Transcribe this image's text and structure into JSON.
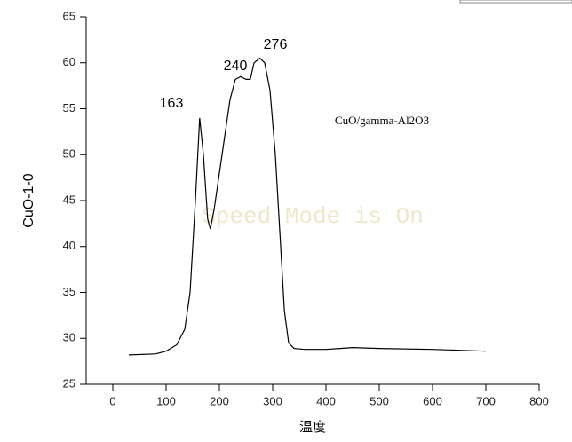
{
  "chart_data": {
    "type": "line",
    "y_label": "CuO-1-0",
    "x_label": "温度",
    "annotations": [
      "163",
      "240",
      "276",
      "CuO/gamma-Al2O3"
    ],
    "watermark": "Speed Mode is On",
    "x": [
      30,
      80,
      100,
      120,
      135,
      145,
      155,
      163,
      170,
      178,
      183,
      190,
      200,
      210,
      220,
      230,
      240,
      250,
      258,
      265,
      276,
      285,
      295,
      305,
      315,
      322,
      330,
      340,
      360,
      400,
      450,
      500,
      600,
      650,
      700
    ],
    "values": [
      28.2,
      28.3,
      28.6,
      29.3,
      31,
      35,
      45,
      54,
      50,
      43,
      41.9,
      44,
      48,
      52,
      56,
      58.2,
      58.5,
      58.2,
      58.2,
      60,
      60.5,
      60,
      57,
      50,
      40,
      33,
      29.5,
      28.9,
      28.8,
      28.8,
      29,
      28.9,
      28.8,
      28.7,
      28.6
    ],
    "color": "#000000",
    "xlim": [
      -50,
      800
    ],
    "ylim": [
      25,
      65
    ],
    "xticks": [
      0,
      100,
      200,
      300,
      400,
      500,
      600,
      700,
      800
    ],
    "yticks": [
      25,
      30,
      35,
      40,
      45,
      50,
      55,
      60,
      65
    ]
  }
}
